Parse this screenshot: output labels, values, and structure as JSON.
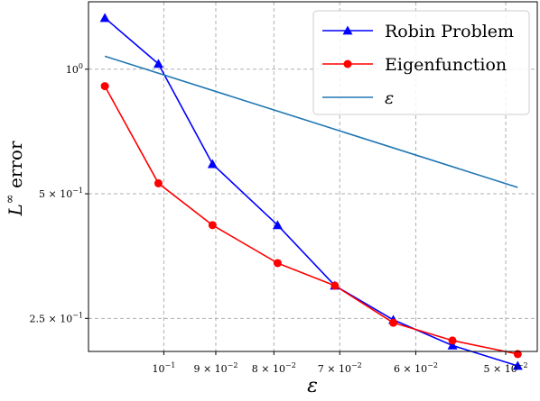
{
  "chart_data": {
    "type": "line",
    "xlabel": "ε",
    "ylabel": "L^∞ error",
    "xscale": "log",
    "yscale": "log",
    "x_direction": "decreasing",
    "xlim": [
      0.1165,
      0.0469
    ],
    "ylim": [
      0.208,
      1.455
    ],
    "grid": true,
    "legend_position": "top-right",
    "x_ticks": [
      {
        "value": 0.1,
        "label": "10",
        "sup": "−1"
      },
      {
        "value": 0.09,
        "label": "9 × 10",
        "sup": "−2"
      },
      {
        "value": 0.08,
        "label": "8 × 10",
        "sup": "−2"
      },
      {
        "value": 0.07,
        "label": "7 × 10",
        "sup": "−2"
      },
      {
        "value": 0.06,
        "label": "6 × 10",
        "sup": "−2"
      },
      {
        "value": 0.05,
        "label": "5 × 10",
        "sup": "−2"
      }
    ],
    "y_ticks": [
      {
        "value": 1.0,
        "label": "10",
        "sup": "0"
      },
      {
        "value": 0.5,
        "label": "5 × 10",
        "sup": "−1"
      },
      {
        "value": 0.25,
        "label": "2.5 × 10",
        "sup": "−1"
      }
    ],
    "series": [
      {
        "name": "Robin Problem",
        "color": "#0000ff",
        "marker": "triangle",
        "x": [
          0.1127,
          0.1011,
          0.0906,
          0.0794,
          0.0707,
          0.0628,
          0.0557,
          0.0488
        ],
        "y": [
          1.33,
          1.03,
          0.59,
          0.42,
          0.3,
          0.248,
          0.215,
          0.192
        ]
      },
      {
        "name": "Eigenfunction",
        "color": "#ff0000",
        "marker": "circle",
        "x": [
          0.1127,
          0.1011,
          0.0906,
          0.0794,
          0.0707,
          0.0628,
          0.0557,
          0.0488
        ],
        "y": [
          0.91,
          0.53,
          0.42,
          0.34,
          0.3,
          0.244,
          0.221,
          0.205
        ]
      },
      {
        "name": "ε",
        "color": "#1f77b4",
        "marker": "none",
        "x": [
          0.1127,
          0.0488
        ],
        "y": [
          1.075,
          0.518
        ]
      }
    ]
  }
}
